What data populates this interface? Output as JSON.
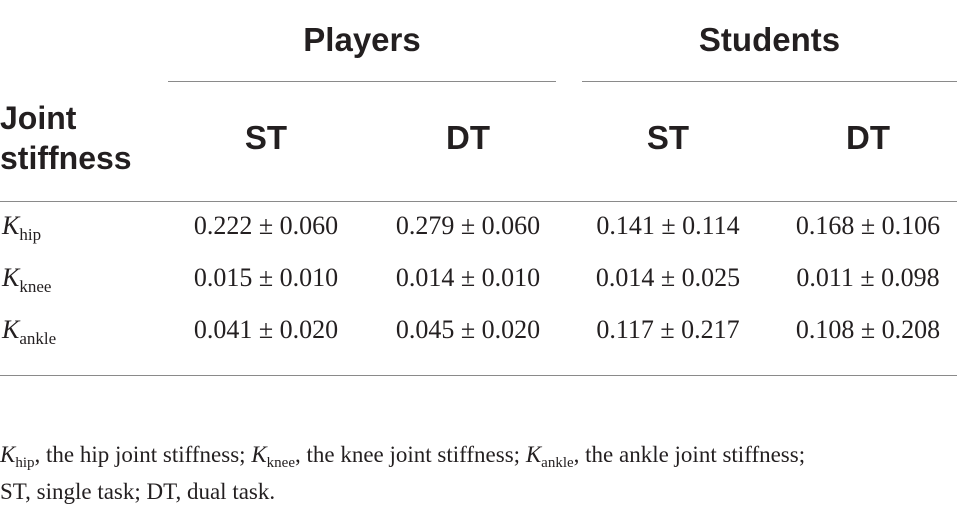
{
  "table": {
    "groups": [
      {
        "label": "Players"
      },
      {
        "label": "Students"
      }
    ],
    "row_header": "Joint stiffness",
    "columns": [
      "ST",
      "DT",
      "ST",
      "DT"
    ],
    "rows": [
      {
        "symbol": "K",
        "sub": "hip",
        "values": [
          "0.222 ± 0.060",
          "0.279 ± 0.060",
          "0.141 ± 0.114",
          "0.168 ± 0.106"
        ]
      },
      {
        "symbol": "K",
        "sub": "knee",
        "values": [
          "0.015 ± 0.010",
          "0.014 ± 0.010",
          "0.014 ± 0.025",
          "0.011 ± 0.098"
        ]
      },
      {
        "symbol": "K",
        "sub": "ankle",
        "values": [
          "0.041 ± 0.020",
          "0.045 ± 0.020",
          "0.117 ± 0.217",
          "0.108 ± 0.208"
        ]
      }
    ]
  },
  "footnote": {
    "items": [
      {
        "symbol": "K",
        "sub": "hip",
        "text": ", the hip joint stiffness; "
      },
      {
        "symbol": "K",
        "sub": "knee",
        "text": ", the knee joint stiffness; "
      },
      {
        "symbol": "K",
        "sub": "ankle",
        "text": ", the ankle joint stiffness;"
      }
    ],
    "line2": "ST, single task; DT, dual task."
  }
}
